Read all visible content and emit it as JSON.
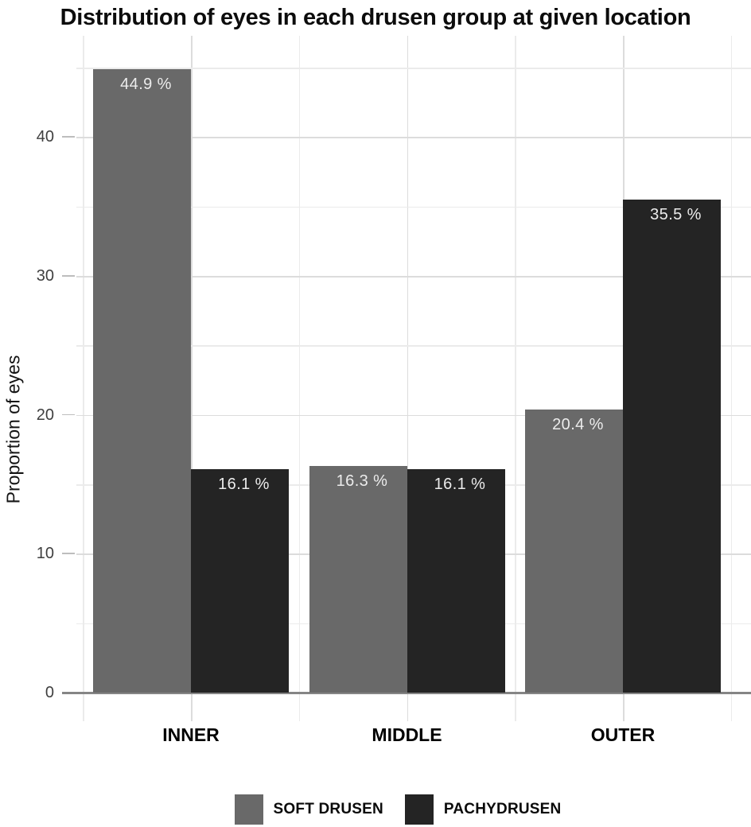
{
  "chart_data": {
    "type": "bar",
    "title": "Distribution of eyes in each drusen group at given location",
    "ylabel": "Proportion of eyes",
    "xlabel": "",
    "categories": [
      "INNER",
      "MIDDLE",
      "OUTER"
    ],
    "series": [
      {
        "name": "SOFT DRUSEN",
        "color": "#696969",
        "values": [
          44.9,
          16.3,
          20.4
        ],
        "bar_labels": [
          "44.9 %",
          "16.3 %",
          "20.4 %"
        ]
      },
      {
        "name": "PACHYDRUSEN",
        "color": "#242424",
        "values": [
          16.1,
          16.1,
          35.5
        ],
        "bar_labels": [
          "16.1 %",
          "16.1 %",
          "35.5 %"
        ]
      }
    ],
    "yticks": [
      0,
      10,
      20,
      30,
      40
    ],
    "minor_yticks": [
      5,
      15,
      25,
      35,
      45
    ],
    "ylim": [
      0,
      47.3
    ],
    "grid": true,
    "legend_position": "bottom",
    "bar_label_position": "inside-top",
    "colors": {
      "background": "#ffffff",
      "grid_major": "#dcdcdc",
      "grid_minor": "#ebebeb",
      "axis_line": "#858585",
      "tick_mark": "#bdbdbd",
      "tick_label": "#3f3f3f",
      "bar_label": "#ececec",
      "title_text": "#0c0c0c"
    }
  }
}
